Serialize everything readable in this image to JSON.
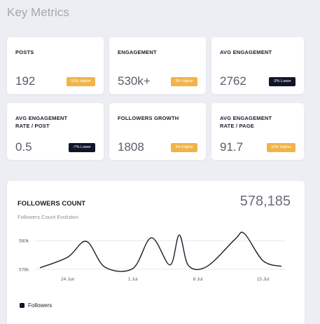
{
  "page": {
    "title": "Key Metrics"
  },
  "metrics": [
    {
      "label": "POSTS",
      "value": "192",
      "badge": "10% Higher",
      "trend": "higher"
    },
    {
      "label": "ENGAGEMENT",
      "value": "530k+",
      "badge": "3% Higher",
      "trend": "higher"
    },
    {
      "label": "AVG ENGAGEMENT",
      "value": "2762",
      "badge": "-3% Lower",
      "trend": "lower"
    },
    {
      "label": "AVG ENGAGEMENT RATE / POST",
      "value": "0.5",
      "badge": "-7% Lower",
      "trend": "lower"
    },
    {
      "label": "FOLLOWERS GROWTH",
      "value": "1808",
      "badge": "3% Higher",
      "trend": "higher"
    },
    {
      "label": "AVG ENGAGEMENT RATE / PAGE",
      "value": "91.7",
      "badge": "10% Higher",
      "trend": "higher"
    }
  ],
  "followers": {
    "title": "FOLLOWERS COUNT",
    "total": "578,185",
    "subtitle": "Followers Count Evolution",
    "legend_label": "Followers"
  },
  "colors": {
    "higher_badge": "#f0b44a",
    "lower_badge": "#12142a",
    "line": "#1c1c2a",
    "grid": "#e6e7ec"
  },
  "chart_data": {
    "type": "line",
    "y_ticks": [
      "580k",
      "576k"
    ],
    "x_ticks": [
      "24 Jun",
      "1 Jul",
      "8 Jul",
      "15 Jul"
    ],
    "ylim": [
      575500,
      581200
    ],
    "series": [
      {
        "name": "Followers",
        "x": [
          "21 Jun",
          "24 Jun",
          "26 Jun",
          "28 Jun",
          "1 Jul",
          "3 Jul",
          "5 Jul",
          "6 Jul",
          "7 Jul",
          "9 Jul",
          "12 Jul",
          "13 Jul",
          "15 Jul",
          "17 Jul"
        ],
        "values": [
          576200,
          577700,
          579900,
          576300,
          576100,
          580400,
          576600,
          580800,
          576500,
          576400,
          580200,
          581000,
          577200,
          576400
        ]
      }
    ]
  }
}
